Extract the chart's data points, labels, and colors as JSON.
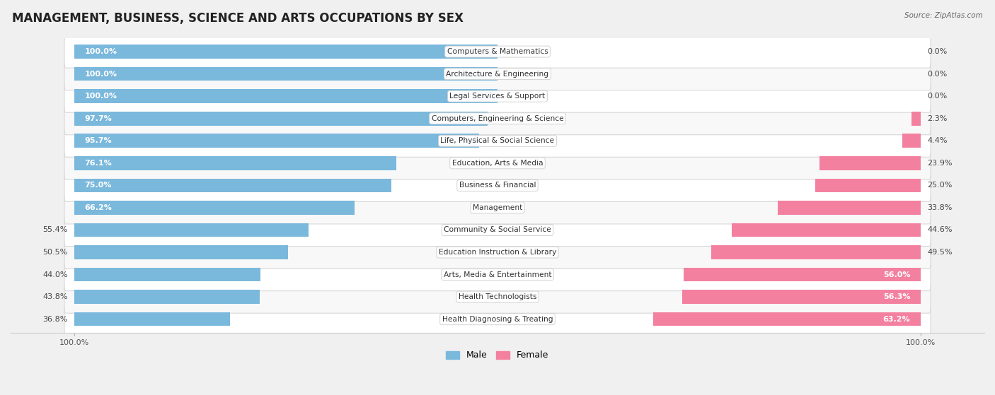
{
  "title": "MANAGEMENT, BUSINESS, SCIENCE AND ARTS OCCUPATIONS BY SEX",
  "source": "Source: ZipAtlas.com",
  "categories": [
    "Computers & Mathematics",
    "Architecture & Engineering",
    "Legal Services & Support",
    "Computers, Engineering & Science",
    "Life, Physical & Social Science",
    "Education, Arts & Media",
    "Business & Financial",
    "Management",
    "Community & Social Service",
    "Education Instruction & Library",
    "Arts, Media & Entertainment",
    "Health Technologists",
    "Health Diagnosing & Treating"
  ],
  "male_pct": [
    100.0,
    100.0,
    100.0,
    97.7,
    95.7,
    76.1,
    75.0,
    66.2,
    55.4,
    50.5,
    44.0,
    43.8,
    36.8
  ],
  "female_pct": [
    0.0,
    0.0,
    0.0,
    2.3,
    4.4,
    23.9,
    25.0,
    33.8,
    44.6,
    49.5,
    56.0,
    56.3,
    63.2
  ],
  "male_color": "#7ab8dc",
  "female_color": "#f480a0",
  "bg_color": "#f0f0f0",
  "row_bg_even": "#f8f8f8",
  "row_bg_odd": "#ffffff",
  "title_fontsize": 12,
  "label_fontsize": 8,
  "axis_fontsize": 8,
  "source_fontsize": 7.5
}
